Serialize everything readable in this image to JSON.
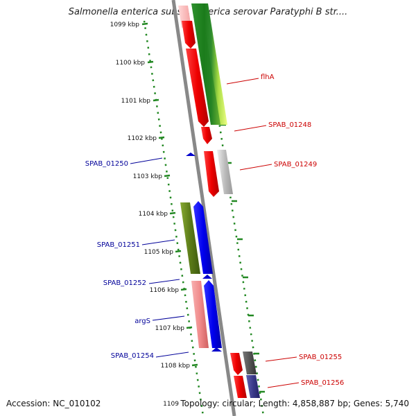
{
  "title": "Salmonella enterica subsp. enterica serovar Paratyphi B str....",
  "accession": "Accession: NC_010102",
  "topology": "Topology: circular; Length: 4,858,887 bp; Genes: 5,740",
  "scale": {
    "ticks": [
      {
        "label": "1099 kbp"
      },
      {
        "label": "1100 kbp"
      },
      {
        "label": "1101 kbp"
      },
      {
        "label": "1102 kbp"
      },
      {
        "label": "1103 kbp"
      },
      {
        "label": "1104 kbp"
      },
      {
        "label": "1105 kbp"
      },
      {
        "label": "1106 kbp"
      },
      {
        "label": "1107 kbp"
      },
      {
        "label": "1108 kbp"
      },
      {
        "label": "1109"
      }
    ]
  },
  "gene_labels": {
    "forward": [
      "flhA",
      "SPAB_01248",
      "SPAB_01249",
      "SPAB_01255",
      "SPAB_01256"
    ],
    "reverse": [
      "SPAB_01250",
      "SPAB_01251",
      "SPAB_01252",
      "argS",
      "SPAB_01254"
    ]
  },
  "colors": {
    "forward_label": "#cc0000",
    "reverse_label": "#000099",
    "backbone": "#888888",
    "ruler": "#228822"
  }
}
